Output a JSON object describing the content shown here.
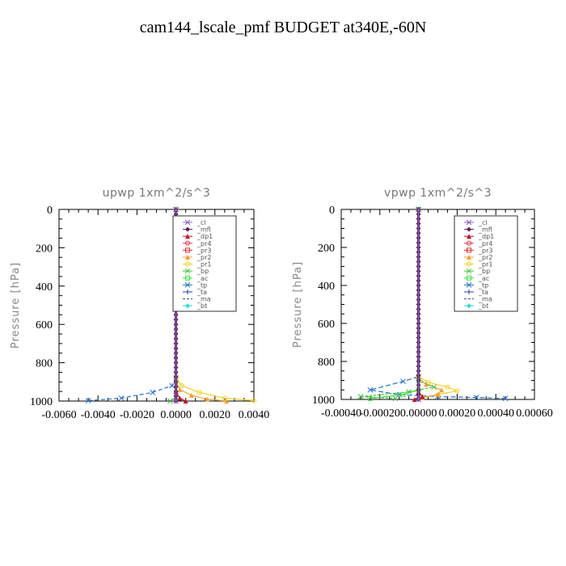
{
  "title": "cam144_lscale_pmf  BUDGET at340E,-60N",
  "legend_entries": [
    {
      "label": "_cl",
      "color": "#8b5fbf",
      "marker": "x"
    },
    {
      "label": "_mfl",
      "color": "#5a1e5a",
      "marker": "diamond"
    },
    {
      "label": "_dp1",
      "color": "#c0102a",
      "marker": "triangle"
    },
    {
      "label": "_pr4",
      "color": "#e0304a",
      "marker": "circle"
    },
    {
      "label": "_pr3",
      "color": "#e03030",
      "marker": "square"
    },
    {
      "label": "_pr2",
      "color": "#f2a030",
      "marker": "triangle"
    },
    {
      "label": "_pr1",
      "color": "#f2d020",
      "marker": "circle"
    },
    {
      "label": "_bp",
      "color": "#40c040",
      "marker": "x"
    },
    {
      "label": "_ac",
      "color": "#40e040",
      "marker": "square"
    },
    {
      "label": "_tp",
      "color": "#2070d0",
      "marker": "x"
    },
    {
      "label": "_ta",
      "color": "#2040a0",
      "marker": "plus"
    },
    {
      "label": "_ma",
      "color": "#404080",
      "marker": "none"
    },
    {
      "label": "_bt",
      "color": "#20e0e0",
      "marker": "diamond"
    }
  ],
  "chart_data": [
    {
      "type": "line",
      "title": "upwp   1xm^2/s^3",
      "ylabel": "Pressure  [hPa]",
      "xlim": [
        -0.006,
        0.004
      ],
      "ylim": [
        1000,
        0
      ],
      "xticks": [
        -0.006,
        -0.004,
        -0.002,
        0.0,
        0.002,
        0.004
      ],
      "xtick_labels": [
        "-0.0060",
        "-0.0040",
        "-0.0020",
        "0.0000",
        "0.0020",
        "0.0040"
      ],
      "yticks": [
        0,
        200,
        400,
        600,
        800,
        1000
      ],
      "ytick_labels": [
        "0",
        "200",
        "400",
        "600",
        "800",
        "1000"
      ],
      "legend_position": "top-right",
      "series": [
        {
          "name": "_tp",
          "color": "#2070d0",
          "dash": "5,3",
          "x": [
            0,
            0,
            -0.0002,
            -0.0012,
            -0.0028,
            -0.0045
          ],
          "y": [
            0,
            880,
            920,
            955,
            985,
            998
          ]
        },
        {
          "name": "_pr1",
          "color": "#f2d020",
          "dash": "",
          "x": [
            0,
            0,
            0.0003,
            0.0012,
            0.0025,
            0.004
          ],
          "y": [
            0,
            880,
            920,
            955,
            985,
            998
          ]
        },
        {
          "name": "_pr2",
          "color": "#f2a030",
          "dash": "",
          "x": [
            0,
            0,
            0.0002,
            0.0008,
            0.0016,
            0.0026
          ],
          "y": [
            0,
            900,
            940,
            970,
            990,
            1000
          ]
        },
        {
          "name": "_dp1",
          "color": "#c0102a",
          "dash": "",
          "x": [
            0,
            0,
            0.0002,
            0.0005
          ],
          "y": [
            0,
            950,
            985,
            1000
          ]
        },
        {
          "name": "_bp",
          "color": "#40c040",
          "dash": "3,2",
          "x": [
            0,
            0,
            -0.0003
          ],
          "y": [
            0,
            980,
            1000
          ]
        },
        {
          "name": "_mfl",
          "color": "#5a1e5a",
          "dash": "",
          "x": [
            0,
            0,
            0,
            0,
            0,
            0,
            0,
            0,
            0,
            0,
            0,
            0,
            0,
            0,
            0,
            0,
            0,
            0,
            0,
            0,
            0,
            0,
            0,
            0,
            0,
            0,
            0,
            0,
            0,
            0,
            0,
            0,
            0,
            0,
            0,
            0,
            0,
            0,
            0,
            0,
            0
          ],
          "y": [
            0,
            25,
            50,
            75,
            100,
            125,
            150,
            175,
            200,
            225,
            250,
            275,
            300,
            325,
            350,
            375,
            400,
            425,
            450,
            475,
            500,
            525,
            550,
            575,
            600,
            625,
            650,
            675,
            700,
            725,
            750,
            775,
            800,
            825,
            850,
            875,
            900,
            925,
            950,
            975,
            1000
          ]
        },
        {
          "name": "_cl",
          "color": "#8b5fbf",
          "dash": "",
          "x": [
            0,
            0
          ],
          "y": [
            0,
            1000
          ]
        }
      ]
    },
    {
      "type": "line",
      "title": "vpwp   1xm^2/s^3",
      "ylabel": "Pressure  [hPa]",
      "xlim": [
        -0.0004,
        0.0006
      ],
      "ylim": [
        1000,
        0
      ],
      "xticks": [
        -0.0004,
        -0.0002,
        0.0,
        0.0002,
        0.0004,
        0.0006
      ],
      "xtick_labels": [
        "-0.00040",
        "-0.00020",
        "0.00000",
        "0.00020",
        "0.00040",
        "0.00060"
      ],
      "yticks": [
        0,
        200,
        400,
        600,
        800,
        1000
      ],
      "ytick_labels": [
        "0",
        "200",
        "400",
        "600",
        "800",
        "1000"
      ],
      "legend_position": "top-right",
      "series": [
        {
          "name": "_tp",
          "color": "#2070d0",
          "dash": "6,3",
          "x": [
            0,
            0,
            -8e-05,
            -0.00025,
            -0.0001,
            0.0001,
            0.0003,
            0.00045
          ],
          "y": [
            0,
            880,
            905,
            950,
            975,
            985,
            990,
            995
          ]
        },
        {
          "name": "_pr1",
          "color": "#f2d020",
          "dash": "",
          "x": [
            0,
            0,
            5e-05,
            0.00015,
            0.0002,
            0.0001,
            2e-05
          ],
          "y": [
            0,
            880,
            910,
            935,
            955,
            975,
            990
          ]
        },
        {
          "name": "_pr2",
          "color": "#f2a030",
          "dash": "",
          "x": [
            0,
            0,
            4e-05,
            0.00012,
            0.0001,
            2e-05
          ],
          "y": [
            0,
            890,
            920,
            950,
            975,
            990
          ]
        },
        {
          "name": "_bp",
          "color": "#40c040",
          "dash": "3,2",
          "x": [
            0,
            0,
            8e-05,
            -5e-05,
            -0.0003,
            -0.00012
          ],
          "y": [
            0,
            900,
            935,
            960,
            985,
            995
          ]
        },
        {
          "name": "_ac",
          "color": "#40e040",
          "dash": "",
          "x": [
            0,
            0,
            -8e-05,
            -0.00025
          ],
          "y": [
            0,
            950,
            975,
            995
          ]
        },
        {
          "name": "_dp1",
          "color": "#c0102a",
          "dash": "",
          "x": [
            0,
            0,
            2e-05,
            -2e-05
          ],
          "y": [
            0,
            960,
            985,
            1000
          ]
        },
        {
          "name": "_mfl",
          "color": "#5a1e5a",
          "dash": "",
          "x": [
            0,
            0,
            0,
            0,
            0,
            0,
            0,
            0,
            0,
            0,
            0,
            0,
            0,
            0,
            0,
            0,
            0,
            0,
            0,
            0,
            0,
            0,
            0,
            0,
            0,
            0,
            0,
            0,
            0,
            0,
            0,
            0,
            0,
            0,
            0,
            0,
            0,
            0,
            0,
            0,
            0
          ],
          "y": [
            0,
            25,
            50,
            75,
            100,
            125,
            150,
            175,
            200,
            225,
            250,
            275,
            300,
            325,
            350,
            375,
            400,
            425,
            450,
            475,
            500,
            525,
            550,
            575,
            600,
            625,
            650,
            675,
            700,
            725,
            750,
            775,
            800,
            825,
            850,
            875,
            900,
            925,
            950,
            975,
            1000
          ]
        },
        {
          "name": "_cl",
          "color": "#8b5fbf",
          "dash": "",
          "x": [
            0,
            0
          ],
          "y": [
            0,
            1000
          ]
        }
      ]
    }
  ]
}
